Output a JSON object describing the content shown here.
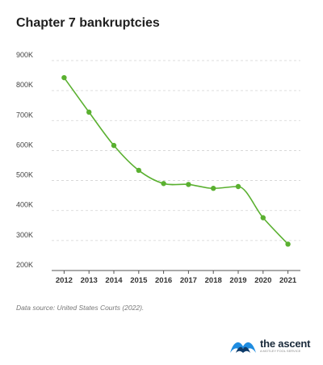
{
  "title": "Chapter 7 bankruptcies",
  "source": "Data source: United States Courts (2022).",
  "brand": {
    "name": "the ascent",
    "sub": "A MOTLEY FOOL SERVICE",
    "logo_icon": "ascent-wave-logo"
  },
  "colors": {
    "line": "#5ab030",
    "point": "#5ab030",
    "grid": "#d2d2d2",
    "axis": "#555555"
  },
  "chart_data": {
    "type": "line",
    "title": "Chapter 7 bankruptcies",
    "xlabel": "",
    "ylabel": "",
    "categories": [
      "2012",
      "2013",
      "2014",
      "2015",
      "2016",
      "2017",
      "2018",
      "2019",
      "2020",
      "2021"
    ],
    "series": [
      {
        "values": [
          843000,
          728000,
          617000,
          534000,
          490000,
          487000,
          474000,
          480000,
          376000,
          288000
        ]
      }
    ],
    "ylim": [
      200000,
      900000
    ],
    "y_ticks": [
      {
        "value": 900000,
        "label": "900K"
      },
      {
        "value": 800000,
        "label": "800K"
      },
      {
        "value": 700000,
        "label": "700K"
      },
      {
        "value": 600000,
        "label": "600K"
      },
      {
        "value": 500000,
        "label": "500K"
      },
      {
        "value": 400000,
        "label": "400K"
      },
      {
        "value": 300000,
        "label": "300K"
      },
      {
        "value": 200000,
        "label": "200K"
      }
    ],
    "grid": "horizontal dashed",
    "legend": "none"
  }
}
